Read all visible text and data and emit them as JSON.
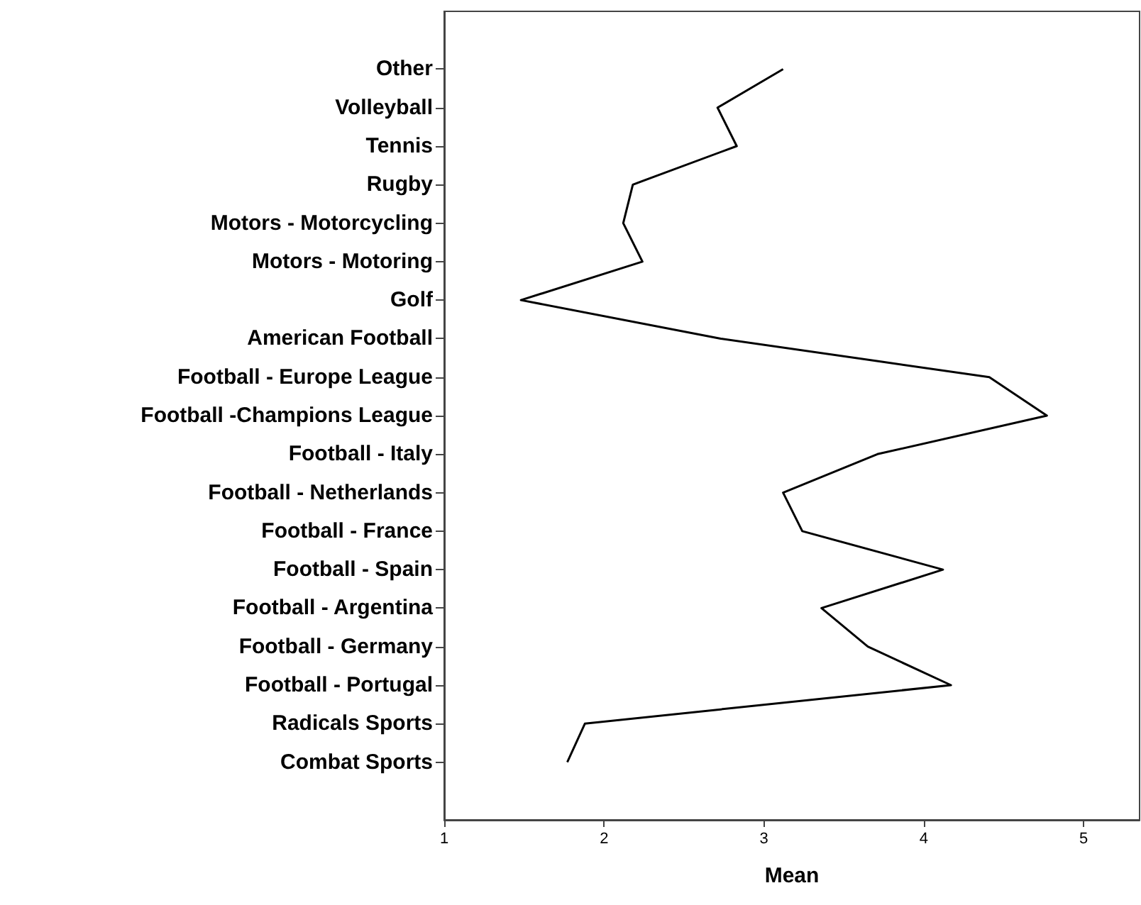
{
  "chart_data": {
    "type": "line",
    "orientation": "horizontal",
    "xlabel": "Mean",
    "categories": [
      "Other",
      "Volleyball",
      "Tennis",
      "Rugby",
      "Motors - Motorcycling",
      "Motors - Motoring",
      "Golf",
      "American Football",
      "Football - Europe League",
      "Football -Champions League",
      "Football - Italy",
      "Football - Netherlands",
      "Football - France",
      "Football - Spain",
      "Football - Argentina",
      "Football - Germany",
      "Football - Portugal",
      "Radicals Sports",
      "Combat Sports"
    ],
    "series": [
      {
        "color": "#000000",
        "values": [
          3.12,
          2.71,
          2.83,
          2.18,
          2.12,
          2.24,
          1.48,
          2.73,
          4.41,
          4.77,
          3.71,
          3.12,
          3.24,
          4.12,
          3.36,
          3.65,
          4.17,
          1.88,
          1.77
        ]
      }
    ],
    "xlim": [
      1,
      5.35
    ],
    "xticks": [
      1,
      2,
      3,
      4,
      5
    ],
    "marker": "none",
    "line_style": "solid"
  }
}
